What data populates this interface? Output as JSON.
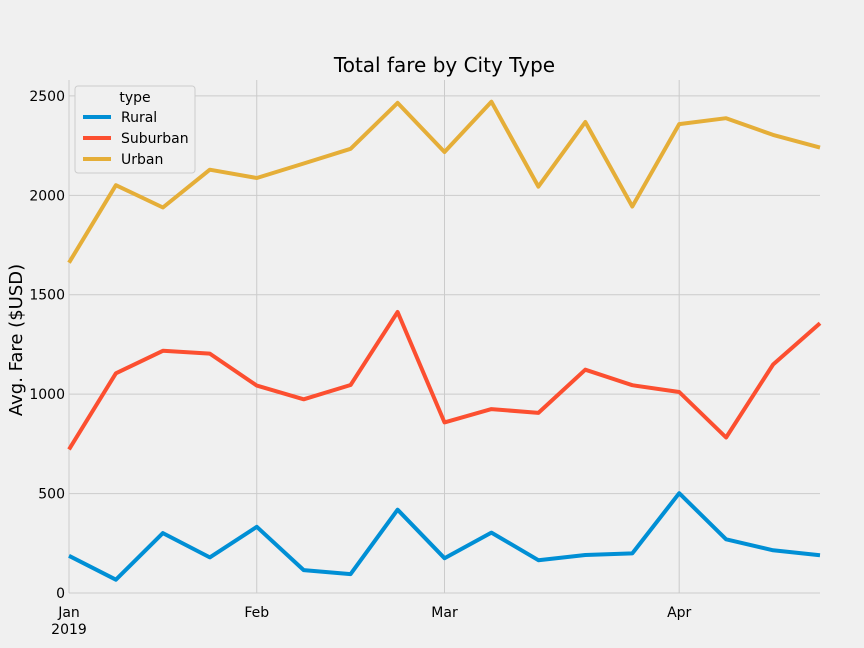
{
  "chart_data": {
    "type": "line",
    "title": "Total fare by City Type",
    "xlabel": "",
    "ylabel": "Avg. Fare ($USD)",
    "x": [
      "2019-01-06",
      "2019-01-13",
      "2019-01-20",
      "2019-01-27",
      "2019-02-03",
      "2019-02-10",
      "2019-02-17",
      "2019-02-24",
      "2019-03-03",
      "2019-03-10",
      "2019-03-17",
      "2019-03-24",
      "2019-03-31",
      "2019-04-07",
      "2019-04-14",
      "2019-04-21",
      "2019-04-28"
    ],
    "xlim": [
      "2019-01-06",
      "2019-04-28"
    ],
    "x_ticks": [
      {
        "date": "2019-01-06",
        "label": "Jan"
      },
      {
        "date": "2019-02-03",
        "label": "Feb"
      },
      {
        "date": "2019-03-03",
        "label": "Mar"
      },
      {
        "date": "2019-04-07",
        "label": "Apr"
      }
    ],
    "x_year_label": "2019",
    "ylim": [
      0,
      2580
    ],
    "y_ticks": [
      0,
      500,
      1000,
      1500,
      2000,
      2500
    ],
    "grid": true,
    "legend": {
      "title": "type",
      "position": "top-left"
    },
    "series": [
      {
        "name": "Rural",
        "color": "#008fd5",
        "values": [
          187,
          67,
          301,
          179,
          333,
          115,
          95,
          419,
          175,
          304,
          165,
          191,
          199,
          502,
          270,
          215,
          190
        ]
      },
      {
        "name": "Suburban",
        "color": "#fc4f30",
        "values": [
          722,
          1105,
          1218,
          1204,
          1043,
          974,
          1046,
          1413,
          858,
          925,
          906,
          1123,
          1045,
          1011,
          782,
          1149,
          1357
        ]
      },
      {
        "name": "Urban",
        "color": "#e5ae38",
        "values": [
          1661,
          2051,
          1939,
          2129,
          2087,
          2160,
          2234,
          2465,
          2218,
          2471,
          2044,
          2369,
          1944,
          2358,
          2388,
          2304,
          2240
        ]
      }
    ]
  }
}
